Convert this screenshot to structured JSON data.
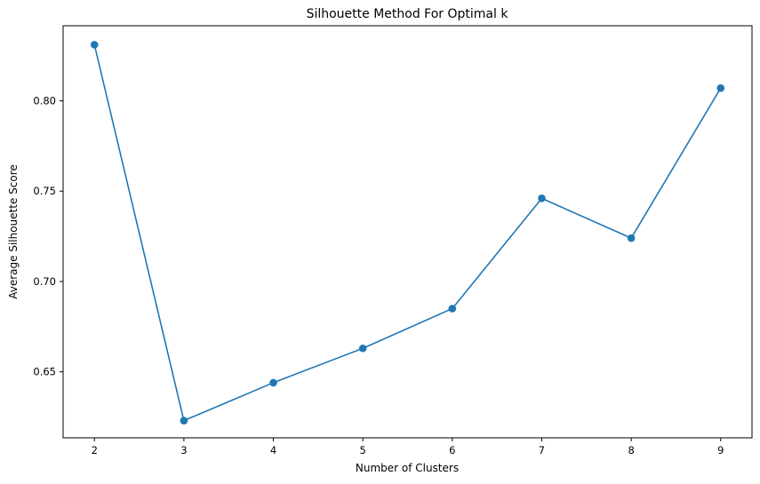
{
  "chart_data": {
    "type": "line",
    "title": "Silhouette Method For Optimal k",
    "xlabel": "Number of Clusters",
    "ylabel": "Average Silhouette Score",
    "x": [
      2,
      3,
      4,
      5,
      6,
      7,
      8,
      9
    ],
    "series": [
      {
        "values": [
          0.831,
          0.623,
          0.644,
          0.663,
          0.685,
          0.746,
          0.724,
          0.807
        ]
      }
    ],
    "xticks": [
      "2",
      "3",
      "4",
      "5",
      "6",
      "7",
      "8",
      "9"
    ],
    "yticks": [
      "0.65",
      "0.70",
      "0.75",
      "0.80"
    ],
    "xlim": [
      1.65,
      9.35
    ],
    "ylim": [
      0.6135,
      0.8415
    ],
    "grid": false,
    "line_color": "#1f77b4",
    "marker": "circle"
  }
}
